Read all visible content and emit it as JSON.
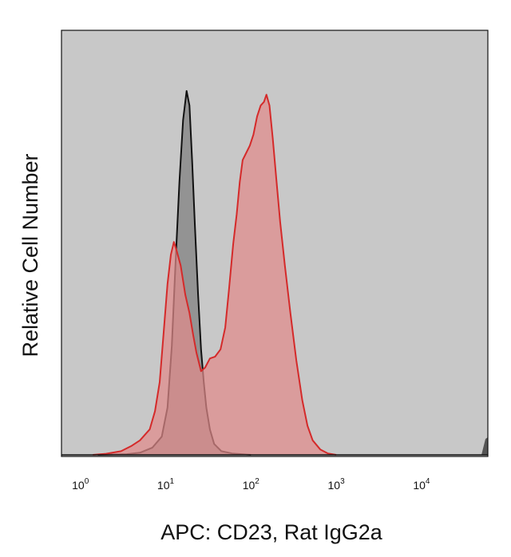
{
  "chart_data": {
    "type": "area",
    "title": "",
    "xlabel": "APC: CD23, Rat IgG2a",
    "ylabel": "Relative Cell Number",
    "x_scale": "log",
    "xlim": [
      0.6,
      60000
    ],
    "ylim": [
      0,
      100
    ],
    "x_ticks": [
      {
        "base": "10",
        "exp": "0",
        "value": 1
      },
      {
        "base": "10",
        "exp": "1",
        "value": 10
      },
      {
        "base": "10",
        "exp": "2",
        "value": 100
      },
      {
        "base": "10",
        "exp": "3",
        "value": 1000
      },
      {
        "base": "10",
        "exp": "4",
        "value": 10000
      }
    ],
    "grid": false,
    "legend": "none",
    "colors": {
      "plot_background": "#c8c8c8",
      "isotype_line": "#111111",
      "isotype_fill": "#8a8a8a",
      "cd23_line": "#d42a2a",
      "cd23_fill": "#e08a8a"
    },
    "series": [
      {
        "color": "#111111",
        "points": [
          [
            1.6,
            0
          ],
          [
            3.5,
            0.2
          ],
          [
            5,
            0.6
          ],
          [
            7,
            2
          ],
          [
            9,
            5
          ],
          [
            10.5,
            13
          ],
          [
            11.8,
            30
          ],
          [
            13,
            52
          ],
          [
            14.5,
            75
          ],
          [
            16,
            92
          ],
          [
            17.6,
            100
          ],
          [
            19,
            96
          ],
          [
            20.5,
            80
          ],
          [
            22,
            63
          ],
          [
            24,
            44
          ],
          [
            26,
            29
          ],
          [
            28,
            20
          ],
          [
            30,
            13
          ],
          [
            33,
            7
          ],
          [
            37,
            3
          ],
          [
            45,
            1
          ],
          [
            60,
            0.4
          ],
          [
            100,
            0
          ]
        ]
      },
      {
        "color": "#d42a2a",
        "points": [
          [
            1.4,
            0
          ],
          [
            2,
            0.3
          ],
          [
            3,
            1
          ],
          [
            4,
            2.5
          ],
          [
            5,
            4
          ],
          [
            6.5,
            7
          ],
          [
            7.5,
            12
          ],
          [
            8.5,
            20
          ],
          [
            9.5,
            34
          ],
          [
            10.5,
            47
          ],
          [
            11.5,
            55
          ],
          [
            12.5,
            58.5
          ],
          [
            13.5,
            56
          ],
          [
            15,
            52
          ],
          [
            17,
            44
          ],
          [
            19,
            39
          ],
          [
            21,
            33
          ],
          [
            23,
            28
          ],
          [
            26,
            23
          ],
          [
            29,
            24
          ],
          [
            33,
            26.5
          ],
          [
            38,
            27
          ],
          [
            44,
            29
          ],
          [
            50,
            35
          ],
          [
            55,
            45
          ],
          [
            62,
            58
          ],
          [
            68,
            66
          ],
          [
            74,
            75
          ],
          [
            80,
            81
          ],
          [
            88,
            83
          ],
          [
            97,
            85
          ],
          [
            107,
            88
          ],
          [
            118,
            93
          ],
          [
            130,
            96
          ],
          [
            142,
            97
          ],
          [
            152,
            99
          ],
          [
            165,
            96
          ],
          [
            180,
            87
          ],
          [
            200,
            75
          ],
          [
            220,
            64
          ],
          [
            250,
            52
          ],
          [
            290,
            39
          ],
          [
            340,
            26
          ],
          [
            400,
            15
          ],
          [
            460,
            8
          ],
          [
            530,
            4
          ],
          [
            650,
            1.5
          ],
          [
            800,
            0.4
          ],
          [
            1000,
            0
          ]
        ]
      }
    ]
  }
}
